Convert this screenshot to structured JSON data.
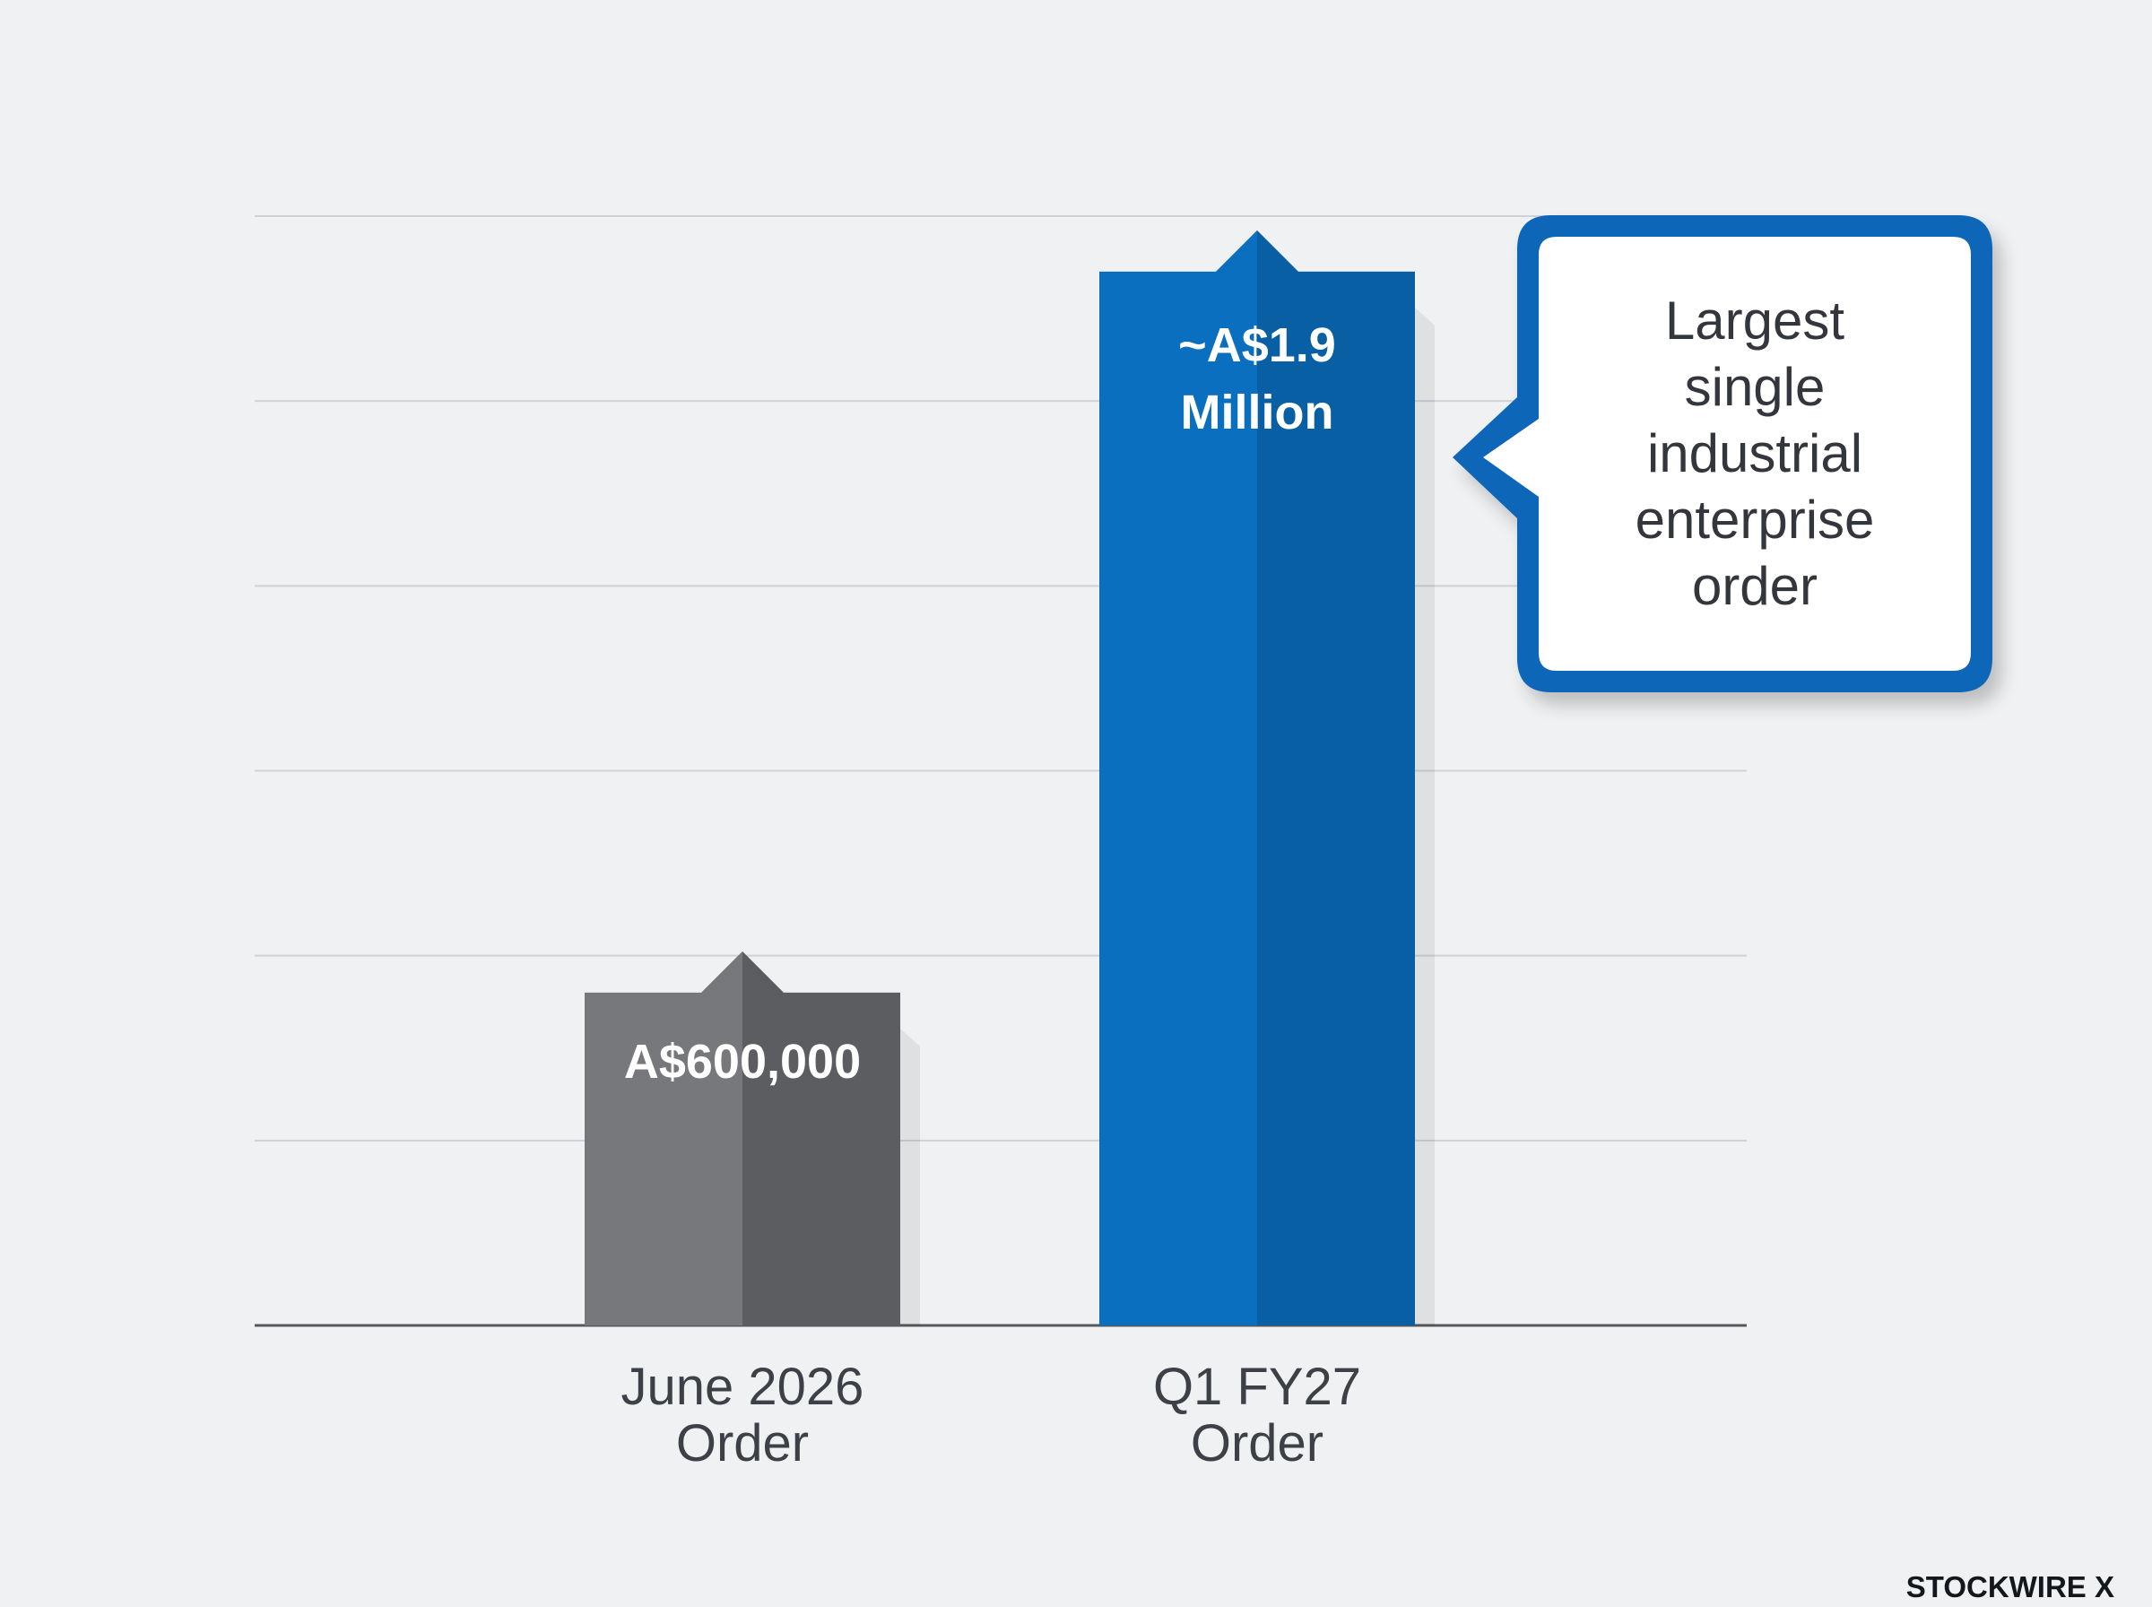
{
  "chart_data": {
    "type": "bar",
    "categories": [
      "June 2026 Order",
      "Q1 FY27 Order"
    ],
    "values": [
      600000,
      1900000
    ],
    "data_labels": [
      "A$600,000",
      "~A$1.9 Million"
    ],
    "ylim": [
      0,
      2000000
    ],
    "grid": true,
    "series_colors": [
      "#6b6c70",
      "#0a6fbf"
    ],
    "annotation": "Largest single industrial enterprise order"
  },
  "brand": "STOCKWIRE X",
  "colors": {
    "background": "#eff1f3",
    "gray_bar": "#6b6c70",
    "blue_bar": "#0a6fbf",
    "callout_border": "#0f66b8",
    "gridline": "#cfd3d8",
    "baseline": "#55595f"
  }
}
